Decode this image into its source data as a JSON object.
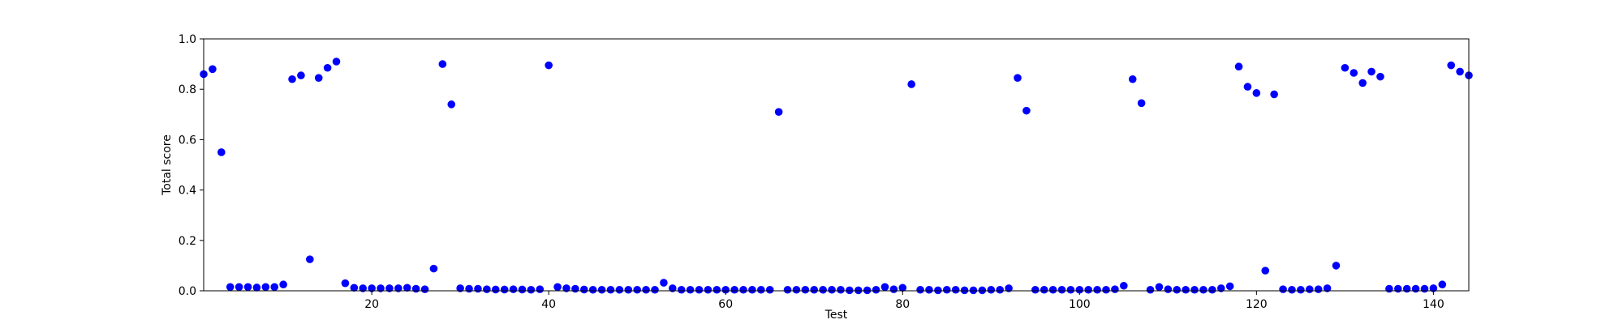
{
  "chart_data": {
    "type": "scatter",
    "title": "",
    "xlabel": "Test",
    "ylabel": "Total score",
    "xlim": [
      1,
      144
    ],
    "ylim": [
      0.0,
      1.0
    ],
    "grid": false,
    "marker_color": "#0000ff",
    "x_ticks": [
      20,
      40,
      60,
      80,
      100,
      120,
      140
    ],
    "y_ticks": [
      0.0,
      0.2,
      0.4,
      0.6,
      0.8,
      1.0
    ],
    "x_tick_labels": [
      "20",
      "40",
      "60",
      "80",
      "100",
      "120",
      "140"
    ],
    "y_tick_labels": [
      "0.0",
      "0.2",
      "0.4",
      "0.6",
      "0.8",
      "1.0"
    ],
    "series": [
      {
        "x": [
          1,
          2,
          3,
          4,
          5,
          6,
          7,
          8,
          9,
          10,
          11,
          12,
          13,
          14,
          15,
          16,
          17,
          18,
          19,
          20,
          21,
          22,
          23,
          24,
          25,
          26,
          27,
          28,
          29,
          30,
          31,
          32,
          33,
          34,
          35,
          36,
          37,
          38,
          39,
          40,
          41,
          42,
          43,
          44,
          45,
          46,
          47,
          48,
          49,
          50,
          51,
          52,
          53,
          54,
          55,
          56,
          57,
          58,
          59,
          60,
          61,
          62,
          63,
          64,
          65,
          66,
          67,
          68,
          69,
          70,
          71,
          72,
          73,
          74,
          75,
          76,
          77,
          78,
          79,
          80,
          81,
          82,
          83,
          84,
          85,
          86,
          87,
          88,
          89,
          90,
          91,
          92,
          93,
          94,
          95,
          96,
          97,
          98,
          99,
          100,
          101,
          102,
          103,
          104,
          105,
          106,
          107,
          108,
          109,
          110,
          111,
          112,
          113,
          114,
          115,
          116,
          117,
          118,
          119,
          120,
          121,
          122,
          123,
          124,
          125,
          126,
          127,
          128,
          129,
          130,
          131,
          132,
          133,
          134,
          135,
          136,
          137,
          138,
          139,
          140,
          141,
          142,
          143,
          144
        ],
        "y": [
          0.86,
          0.88,
          0.55,
          0.015,
          0.015,
          0.015,
          0.013,
          0.015,
          0.015,
          0.025,
          0.84,
          0.855,
          0.125,
          0.845,
          0.885,
          0.91,
          0.03,
          0.012,
          0.01,
          0.01,
          0.01,
          0.01,
          0.01,
          0.012,
          0.008,
          0.006,
          0.088,
          0.9,
          0.74,
          0.01,
          0.008,
          0.008,
          0.006,
          0.005,
          0.005,
          0.006,
          0.005,
          0.004,
          0.006,
          0.895,
          0.015,
          0.01,
          0.008,
          0.005,
          0.004,
          0.004,
          0.004,
          0.004,
          0.004,
          0.004,
          0.004,
          0.004,
          0.032,
          0.01,
          0.004,
          0.004,
          0.004,
          0.004,
          0.004,
          0.004,
          0.004,
          0.004,
          0.004,
          0.004,
          0.004,
          0.71,
          0.004,
          0.004,
          0.004,
          0.004,
          0.004,
          0.004,
          0.004,
          0.002,
          0.002,
          0.002,
          0.004,
          0.015,
          0.006,
          0.012,
          0.82,
          0.004,
          0.004,
          0.002,
          0.004,
          0.004,
          0.002,
          0.002,
          0.002,
          0.004,
          0.004,
          0.01,
          0.845,
          0.715,
          0.004,
          0.004,
          0.004,
          0.004,
          0.004,
          0.004,
          0.004,
          0.004,
          0.004,
          0.006,
          0.02,
          0.84,
          0.745,
          0.004,
          0.015,
          0.006,
          0.004,
          0.004,
          0.004,
          0.004,
          0.004,
          0.01,
          0.018,
          0.89,
          0.81,
          0.785,
          0.08,
          0.78,
          0.006,
          0.004,
          0.004,
          0.006,
          0.006,
          0.01,
          0.1,
          0.885,
          0.865,
          0.825,
          0.87,
          0.85,
          0.008,
          0.008,
          0.008,
          0.008,
          0.008,
          0.01,
          0.025,
          0.895,
          0.87,
          0.855
        ]
      }
    ]
  }
}
